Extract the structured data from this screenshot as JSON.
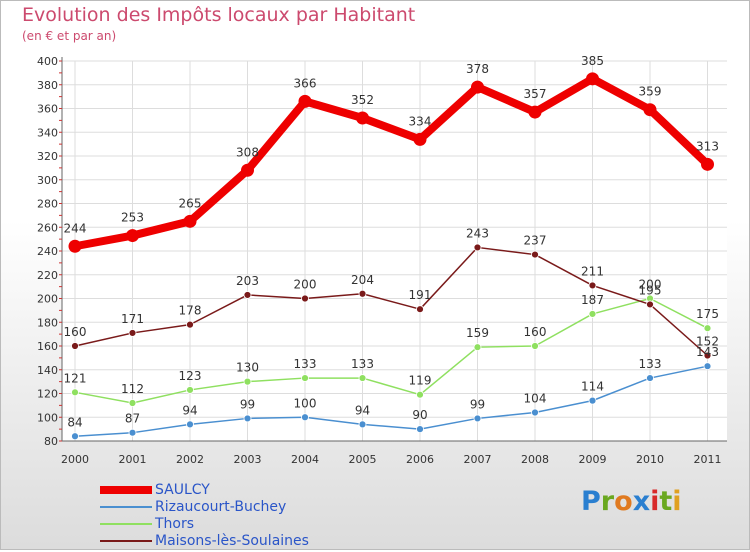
{
  "header": {
    "title": "Evolution des Impôts locaux par Habitant",
    "subtitle": "(en € et par an)"
  },
  "logo": {
    "text": "Proxiti"
  },
  "chart_data": {
    "type": "line",
    "title": "Evolution des Impôts locaux par Habitant",
    "subtitle": "(en € et par an)",
    "x": [
      "2000",
      "2001",
      "2002",
      "2003",
      "2004",
      "2005",
      "2006",
      "2007",
      "2008",
      "2009",
      "2010",
      "2011"
    ],
    "ylim": [
      80,
      400
    ],
    "yticks": [
      80,
      100,
      120,
      140,
      160,
      180,
      200,
      220,
      240,
      260,
      280,
      300,
      320,
      340,
      360,
      380,
      400
    ],
    "grid": true,
    "legend_position": "bottom-left",
    "series": [
      {
        "name": "SAULCY",
        "color": "#ee0000",
        "values": [
          244,
          253,
          265,
          308,
          366,
          352,
          334,
          378,
          357,
          385,
          359,
          313
        ]
      },
      {
        "name": "Rizaucourt-Buchey",
        "color": "#4a8fd0",
        "values": [
          84,
          87,
          94,
          99,
          100,
          94,
          90,
          99,
          104,
          114,
          133,
          143
        ]
      },
      {
        "name": "Thors",
        "color": "#8fe060",
        "values": [
          121,
          112,
          123,
          130,
          133,
          133,
          119,
          159,
          160,
          187,
          200,
          175
        ]
      },
      {
        "name": "Maisons-lès-Soulaines",
        "color": "#7a1a1a",
        "values": [
          160,
          171,
          178,
          203,
          200,
          204,
          191,
          243,
          237,
          211,
          195,
          152
        ]
      }
    ],
    "data_labels": {
      "SAULCY": [
        "244",
        "253",
        "265",
        "308",
        "366",
        "352",
        "334",
        "378",
        "357",
        "385",
        "359",
        "313"
      ],
      "Rizaucourt-Buchey": [
        "84",
        "87",
        "94",
        "99",
        "100",
        "94",
        "90",
        "99",
        "104",
        "114",
        "133",
        "143"
      ],
      "Thors": [
        "121",
        "112",
        "123",
        "130",
        "133",
        "133",
        "119",
        "159",
        "160",
        "187",
        "200",
        "175"
      ],
      "Maisons-lès-Soulaines": [
        "160",
        "171",
        "178",
        "203",
        "200",
        "204",
        "191",
        "243",
        "237",
        "211",
        "195",
        "152"
      ]
    }
  }
}
